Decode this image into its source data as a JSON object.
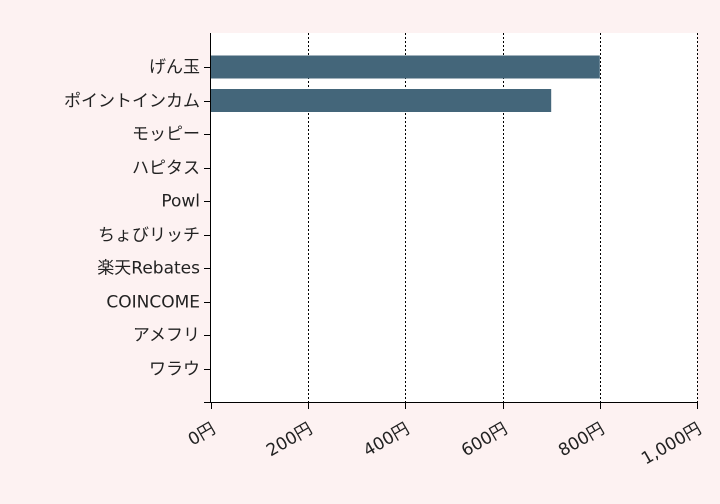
{
  "chart_data": {
    "type": "bar",
    "orientation": "horizontal",
    "categories": [
      "げん玉",
      "ポイントインカム",
      "モッピー",
      "ハピタス",
      "Powl",
      "ちょびリッチ",
      "楽天Rebates",
      "COINCOME",
      "アメフリ",
      "ワラウ"
    ],
    "values": [
      800,
      700,
      0,
      0,
      0,
      0,
      0,
      0,
      0,
      0
    ],
    "xlim": [
      0,
      1000
    ],
    "xticks": [
      0,
      200,
      400,
      600,
      800,
      1000
    ],
    "xtick_labels": [
      "0円",
      "200円",
      "400円",
      "600円",
      "800円",
      "1,000円"
    ],
    "grid": "vertical dashed",
    "title": "",
    "xlabel": "",
    "ylabel": ""
  },
  "colors": {
    "bar": "#44667a",
    "plot_background": "#ffffff",
    "page_background": "#fdf2f2",
    "grid": "#000000"
  }
}
